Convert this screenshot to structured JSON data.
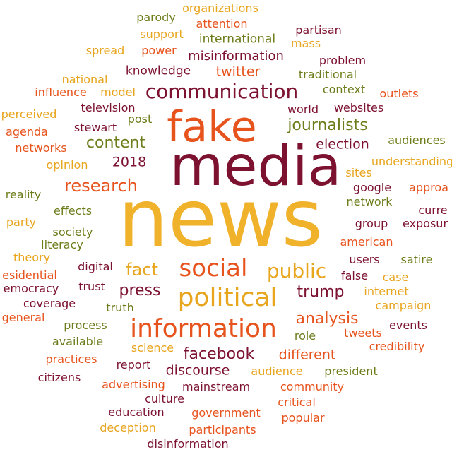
{
  "words": {
    "news": "news",
    "media": "media",
    "fake": "fake",
    "information": "information",
    "political": "political",
    "social": "social",
    "communication": "communication",
    "public": "public",
    "research": "research",
    "fact": "fact",
    "press": "press",
    "trump": "trump",
    "journalists": "journalists",
    "content": "content",
    "analysis": "analysis",
    "facebook": "facebook",
    "twitter": "twitter",
    "misinformation": "misinformation",
    "discourse": "discourse",
    "different": "different",
    "election": "election",
    "year_2018": "2018",
    "international": "international",
    "knowledge": "knowledge",
    "organizations": "organizations",
    "parody": "parody",
    "attention": "attention",
    "support": "support",
    "partisan": "partisan",
    "mass": "mass",
    "spread": "spread",
    "power": "power",
    "problem": "problem",
    "national": "national",
    "traditional": "traditional",
    "influence": "influence",
    "model": "model",
    "context": "context",
    "outlets": "outlets",
    "perceived": "perceived",
    "television": "television",
    "world": "world",
    "websites": "websites",
    "post": "post",
    "agenda": "agenda",
    "stewart": "stewart",
    "audiences": "audiences",
    "networks": "networks",
    "opinion": "opinion",
    "understanding": "understanding",
    "sites": "sites",
    "reality": "reality",
    "google": "google",
    "approach": "approa",
    "network": "network",
    "effects": "effects",
    "current": "curre",
    "party": "party",
    "group": "group",
    "exposure": "exposur",
    "society": "society",
    "literacy": "literacy",
    "american": "american",
    "theory": "theory",
    "users": "users",
    "satire": "satire",
    "digital": "digital",
    "presidential": "esidential",
    "false": "false",
    "case": "case",
    "democracy": "emocracy",
    "trust": "trust",
    "internet": "internet",
    "coverage": "coverage",
    "campaign": "campaign",
    "truth": "truth",
    "general": "general",
    "process": "process",
    "role": "role",
    "events": "events",
    "tweets": "tweets",
    "available": "available",
    "credibility": "credibility",
    "science": "science",
    "practices": "practices",
    "report": "report",
    "audience": "audience",
    "president": "president",
    "citizens": "citizens",
    "advertising": "advertising",
    "mainstream": "mainstream",
    "community": "community",
    "culture": "culture",
    "critical": "critical",
    "education": "education",
    "government": "government",
    "popular": "popular",
    "deception": "deception",
    "participants": "participants",
    "disinformation": "disinformation"
  },
  "colors": {
    "gold": "#e8a51e",
    "orange_red": "#e7531d",
    "maroon": "#7c1130",
    "olive": "#6e7d1c",
    "amber": "#f0b12b"
  }
}
